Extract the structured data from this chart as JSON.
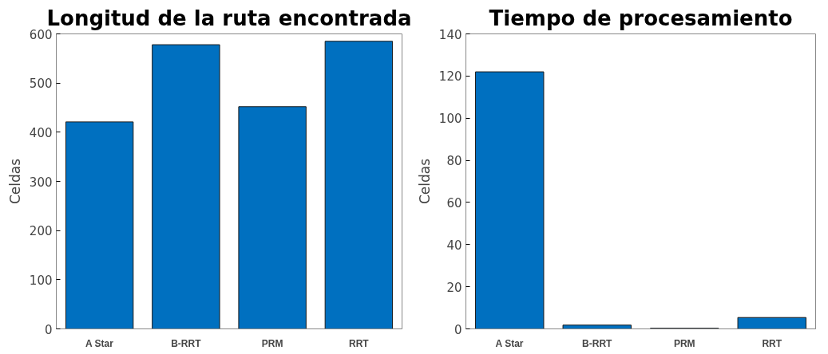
{
  "chart_data": [
    {
      "type": "bar",
      "title": "Longitud de la ruta encontrada",
      "ylabel": "Celdas",
      "categories": [
        "A Star",
        "B-RRT",
        "PRM",
        "RRT"
      ],
      "values": [
        421,
        578,
        452,
        585
      ],
      "color": "#0070c0",
      "ylim": [
        0,
        600
      ],
      "yticks": [
        0,
        100,
        200,
        300,
        400,
        500,
        600
      ],
      "grid": false,
      "legend": false
    },
    {
      "type": "bar",
      "title": "Tiempo de procesamiento",
      "ylabel": "Celdas",
      "categories": [
        "A Star",
        "B-RRT",
        "PRM",
        "RRT"
      ],
      "values": [
        122,
        1.8,
        0.3,
        5.4
      ],
      "color": "#0070c0",
      "ylim": [
        0,
        140
      ],
      "yticks": [
        0,
        20,
        40,
        60,
        80,
        100,
        120,
        140
      ],
      "grid": false,
      "legend": false
    }
  ]
}
